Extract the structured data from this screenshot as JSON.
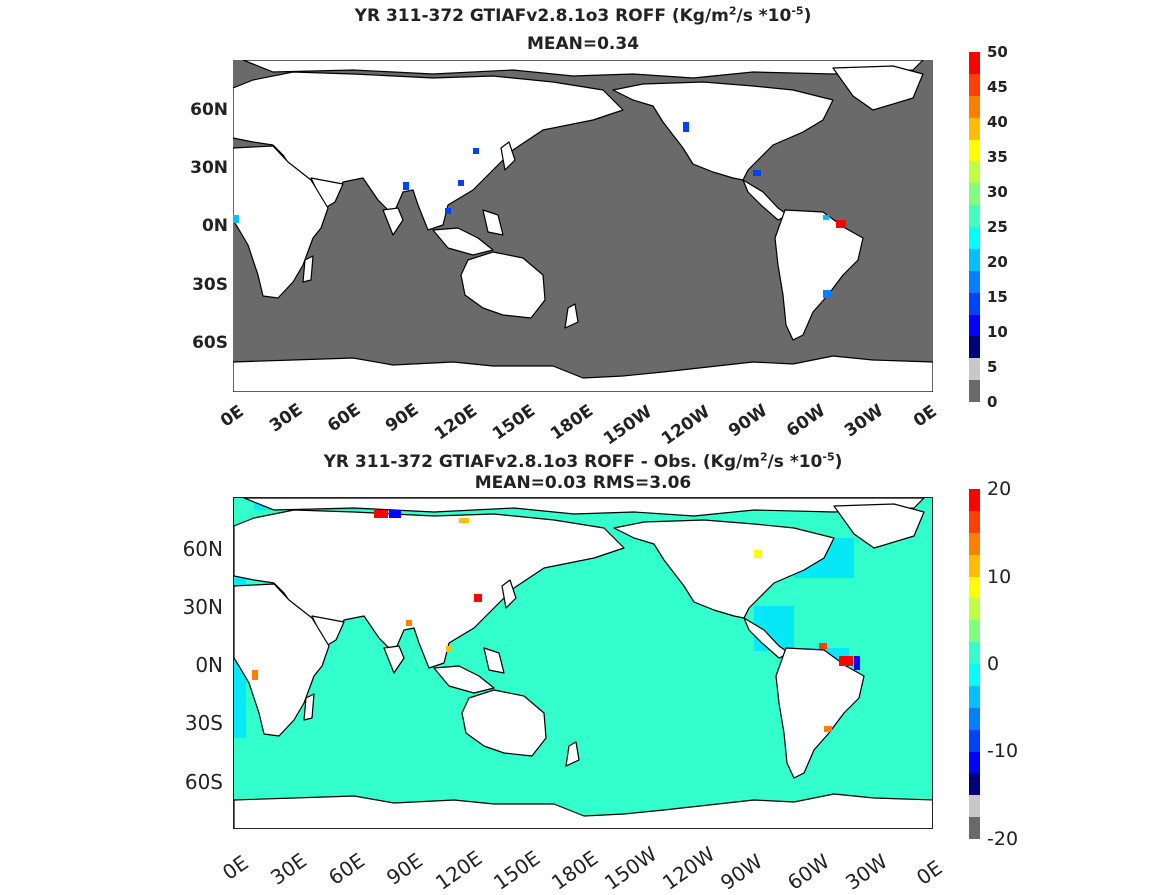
{
  "top_panel": {
    "title_prefix": "YR 311-372 GTIAFv2.8.1o3 ROFF (Kg/m",
    "title_sup1": "2",
    "title_mid": "/s   *10",
    "title_sup2": "-5",
    "title_suffix": ")",
    "stats": "MEAN=0.34",
    "lat_ticks": [
      "60N",
      "30N",
      "0N",
      "30S",
      "60S"
    ],
    "lon_ticks": [
      "0E",
      "30E",
      "60E",
      "90E",
      "120E",
      "150E",
      "180E",
      "150W",
      "120W",
      "90W",
      "60W",
      "30W",
      "0E"
    ],
    "colorbar_ticks": [
      "50",
      "45",
      "40",
      "35",
      "30",
      "25",
      "20",
      "15",
      "10",
      "5",
      "0"
    ],
    "ocean_color": "#6a6a6a",
    "colorbar_colors": [
      "#6a6a6a",
      "#c8c8c8",
      "#00007f",
      "#0000ff",
      "#0040ff",
      "#0080ff",
      "#00c0ff",
      "#00ffff",
      "#40ffbf",
      "#80ff80",
      "#bfff40",
      "#ffff00",
      "#ffbf00",
      "#ff8000",
      "#ff4000",
      "#ff0000"
    ]
  },
  "bottom_panel": {
    "title_prefix": "YR 311-372 GTIAFv2.8.1o3 ROFF - Obs. (Kg/m",
    "title_sup1": "2",
    "title_mid": "/s *10",
    "title_sup2": "-5",
    "title_suffix": ")",
    "stats": "MEAN=0.03   RMS=3.06",
    "lat_ticks": [
      "60N",
      "30N",
      "0N",
      "30S",
      "60S"
    ],
    "lon_ticks": [
      "0E",
      "30E",
      "60E",
      "90E",
      "120E",
      "150E",
      "180E",
      "150W",
      "120W",
      "90W",
      "60W",
      "30W",
      "0E"
    ],
    "colorbar_ticks": [
      "20",
      "10",
      "0",
      "-10",
      "-20"
    ],
    "ocean_color": "#33ffcc",
    "colorbar_colors": [
      "#6a6a6a",
      "#c8c8c8",
      "#00007f",
      "#0000ff",
      "#0040ff",
      "#0080ff",
      "#00c0ff",
      "#00ffff",
      "#33ffcc",
      "#80ff80",
      "#bfff40",
      "#ffff00",
      "#ffbf00",
      "#ff8000",
      "#ff4000",
      "#ff0000"
    ]
  }
}
